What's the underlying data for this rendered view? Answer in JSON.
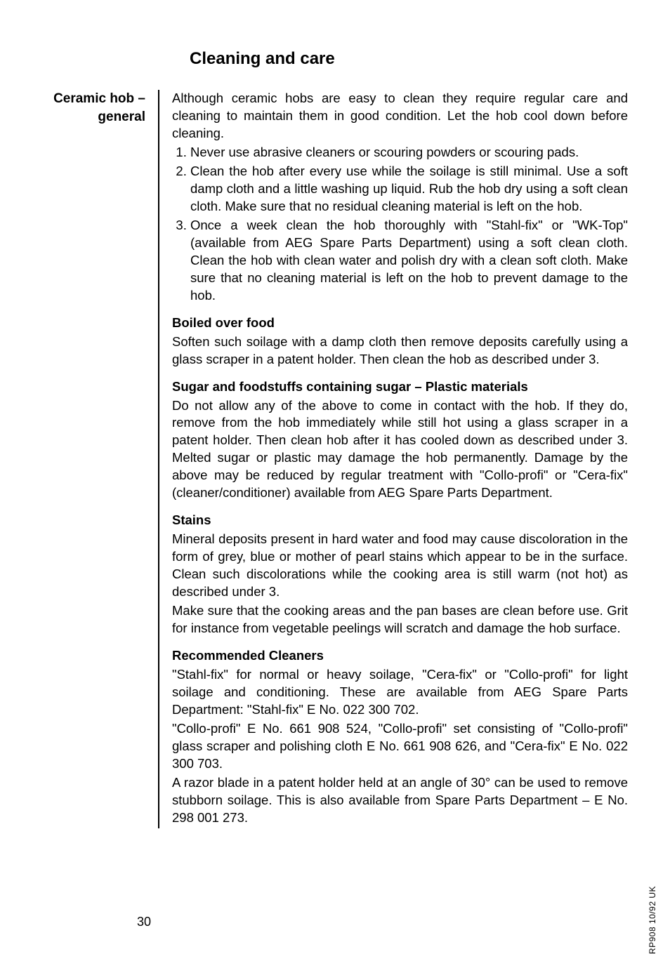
{
  "title": "Cleaning and care",
  "sidebar_heading": "Ceramic hob – general",
  "intro": "Although ceramic hobs are easy to clean they require regular care and cleaning to maintain them in good condition. Let the hob cool down before cleaning.",
  "list": {
    "item1": "Never use abrasive cleaners or scouring powders or scouring pads.",
    "item2": "Clean the hob after every use while the soilage is still minimal. Use a soft damp cloth and a little washing up liquid. Rub the hob dry using a soft clean cloth. Make sure that no residual cleaning material is left on the hob.",
    "item3": "Once a week clean the hob thoroughly with \"Stahl-fix\" or \"WK-Top\" (available from AEG Spare Parts Department) using a soft clean cloth. Clean the hob with clean water and polish dry with a clean soft cloth. Make sure that no cleaning material is left on the hob to prevent damage to the hob."
  },
  "boiled": {
    "heading": "Boiled over food",
    "body": "Soften such soilage with a damp cloth then remove deposits carefully using a glass scraper in a patent holder. Then clean the hob as described under 3."
  },
  "sugar": {
    "heading": "Sugar and foodstuffs containing sugar – Plastic materials",
    "body": "Do not allow any of the above to come in contact with the hob. If they do, remove from the hob immediately while still hot using a glass scraper in a patent holder. Then clean hob after it has cooled down as described under 3. Melted sugar or plastic may damage the hob permanently. Damage by the above may be reduced by regular treatment with \"Collo-profi\" or \"Cera-fix\" (cleaner/conditioner) available from AEG Spare Parts Department."
  },
  "stains": {
    "heading": "Stains",
    "body1": "Mineral deposits present in hard water and food may cause discoloration in the form of grey, blue or mother of pearl stains which appear to be in the surface. Clean such discolorations while the cooking area is still warm (not hot) as described under 3.",
    "body2": "Make sure that the cooking areas and the pan bases are clean before use. Grit for instance from vegetable peelings will scratch and damage the hob surface."
  },
  "cleaners": {
    "heading": "Recommended Cleaners",
    "body1": "\"Stahl-fix\" for normal or heavy soilage, \"Cera-fix\" or \"Collo-profi\" for light soilage and conditioning. These are available from AEG Spare Parts Department: \"Stahl-fix\" E No. 022 300 702.",
    "body2": "\"Collo-profi\" E No. 661 908 524, \"Collo-profi\" set consisting of \"Collo-profi\" glass scraper and polishing cloth E No. 661 908 626, and \"Cera-fix\" E No. 022 300 703.",
    "body3": "A razor blade in a patent holder held at an angle of 30° can be used to remove stubborn soilage. This is also available from Spare Parts Department – E No. 298 001 273."
  },
  "page_number": "30",
  "side_code": "RP908 10/92  UK"
}
